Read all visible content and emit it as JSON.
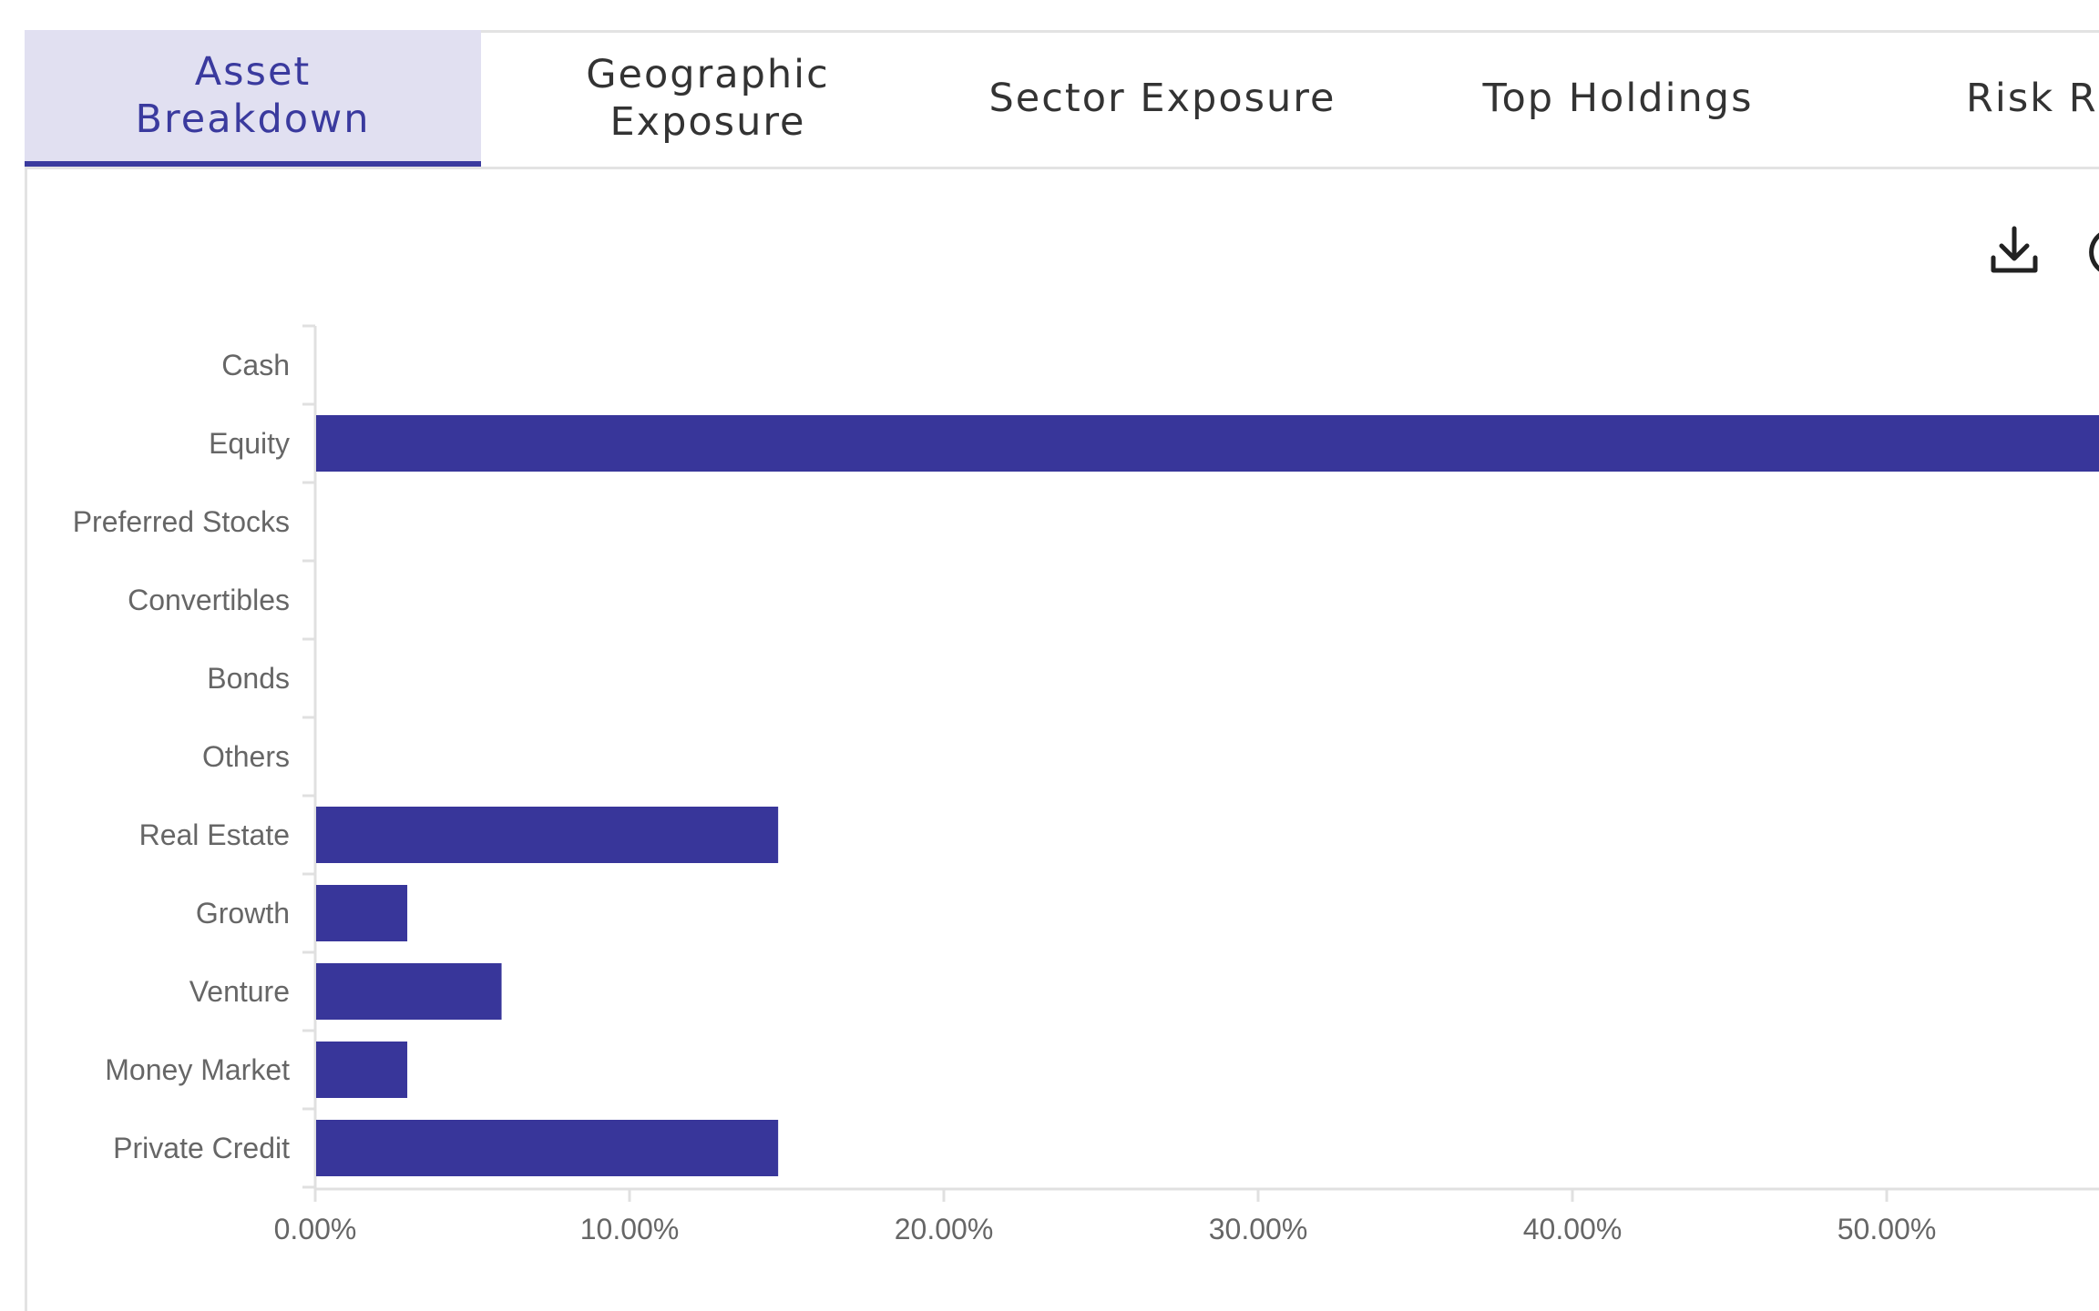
{
  "tabs": [
    {
      "label": "Asset Breakdown",
      "active": true
    },
    {
      "label": "Geographic Exposure",
      "active": false
    },
    {
      "label": "Sector Exposure",
      "active": false
    },
    {
      "label": "Top Holdings",
      "active": false
    },
    {
      "label": "Risk Ra",
      "active": false
    }
  ],
  "toolbar": {
    "download_icon": "download-icon",
    "second_icon": "circle-icon"
  },
  "colors": {
    "accent": "#3a3a9e",
    "bar": "#38369a",
    "tab_active_bg": "#e1e0f1",
    "axis": "#e0e0e0",
    "label": "#666666"
  },
  "chart_data": {
    "type": "bar",
    "orientation": "horizontal",
    "categories": [
      "Cash",
      "Equity",
      "Preferred Stocks",
      "Convertibles",
      "Bonds",
      "Others",
      "Real Estate",
      "Growth",
      "Venture",
      "Money Market",
      "Private Credit"
    ],
    "values": [
      0,
      57,
      0,
      0,
      0,
      0,
      14.7,
      2.9,
      5.9,
      2.9,
      14.7
    ],
    "x_ticks": [
      "0.00%",
      "10.00%",
      "20.00%",
      "30.00%",
      "40.00%",
      "50.00%"
    ],
    "x_tick_values": [
      0,
      10,
      20,
      30,
      40,
      50
    ],
    "xlim": [
      0,
      56.8
    ],
    "title": "",
    "xlabel": "",
    "ylabel": "",
    "grid": false,
    "legend": "none"
  }
}
